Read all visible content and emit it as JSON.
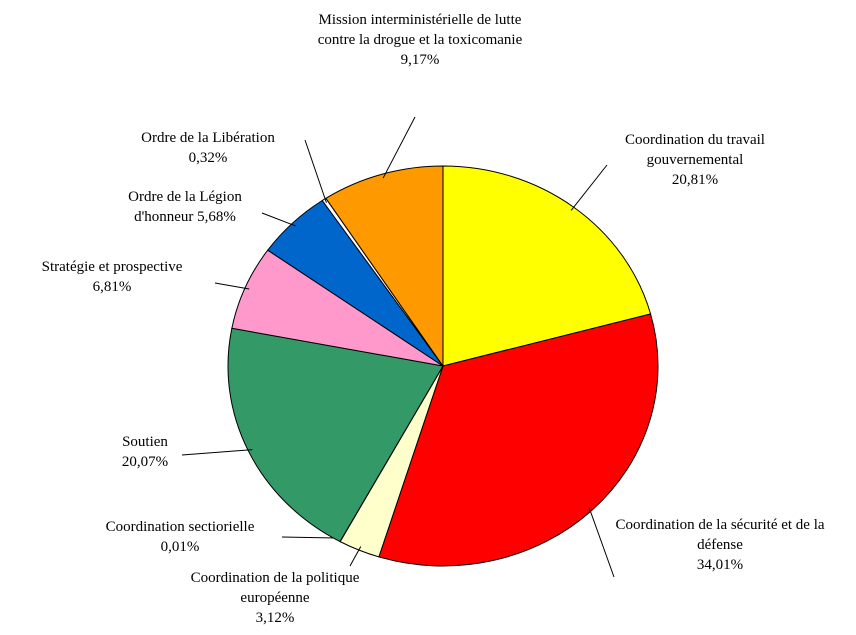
{
  "chart_data": {
    "type": "pie",
    "categories": [
      "Coordination du travail gouvernemental",
      "Coordination de la sécurité et de la défense",
      "Coordination de la politique européenne",
      "Coordination sectiorielle",
      "Soutien",
      "Stratégie et prospective",
      "Ordre de la Légion d'honneur",
      "Ordre de la Libération",
      "Mission interministérielle de lutte contre la drogue et la toxicomanie"
    ],
    "values": [
      20.81,
      34.01,
      3.12,
      0.01,
      20.07,
      6.81,
      5.68,
      0.32,
      9.17
    ],
    "value_labels": [
      "20,81%",
      "34,01%",
      "3,12%",
      "0,01%",
      "20,07%",
      "6,81%",
      "5,68%",
      "0,32%",
      "9,17%"
    ],
    "colors": [
      "#ffff00",
      "#ff0000",
      "#ffffcc",
      "#ffffcc",
      "#339966",
      "#ff99cc",
      "#0066cc",
      "#ffffff",
      "#ff9900"
    ]
  }
}
